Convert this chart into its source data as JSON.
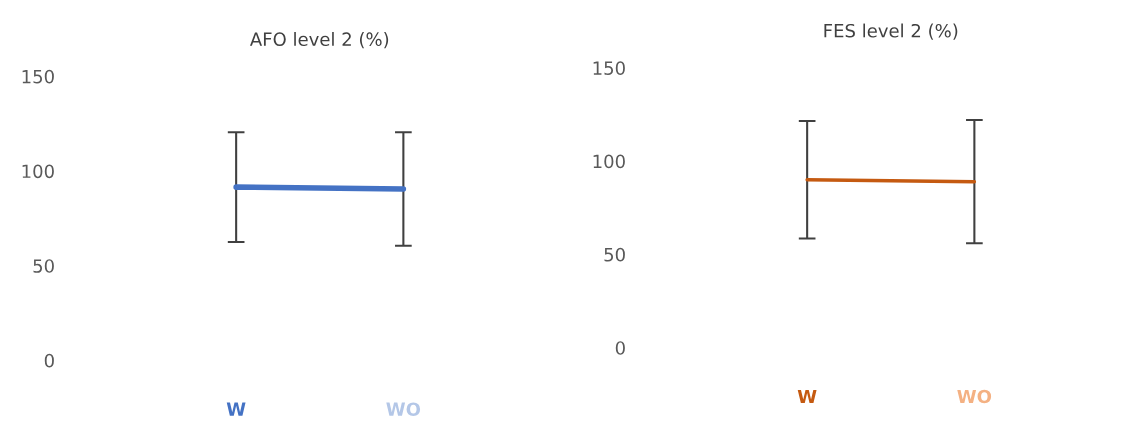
{
  "chart_data": [
    {
      "type": "line",
      "title": "AFO level 2 (%)",
      "categories": [
        "W",
        "WO"
      ],
      "series": [
        {
          "color": "#4472c4",
          "colors": [
            "#4472c4",
            "#b4c7e7"
          ],
          "values": [
            91.5,
            90.5
          ],
          "errors": [
            29,
            30
          ]
        }
      ],
      "ylim": [
        0,
        150
      ],
      "yticks": [
        0,
        50,
        100,
        150
      ],
      "grid": false,
      "legend": false,
      "marker": "none",
      "line_style": "solid"
    },
    {
      "type": "line",
      "title": "FES level 2 (%)",
      "categories": [
        "W",
        "WO"
      ],
      "series": [
        {
          "color": "#c55a11",
          "colors": [
            "#c55a11",
            "#f4b183"
          ],
          "values": [
            90,
            89
          ],
          "errors": [
            31.5,
            33
          ]
        }
      ],
      "ylim": [
        0,
        150
      ],
      "yticks": [
        0,
        50,
        100,
        150
      ],
      "grid": false,
      "legend": false,
      "marker": "none",
      "line_style": "solid"
    }
  ]
}
